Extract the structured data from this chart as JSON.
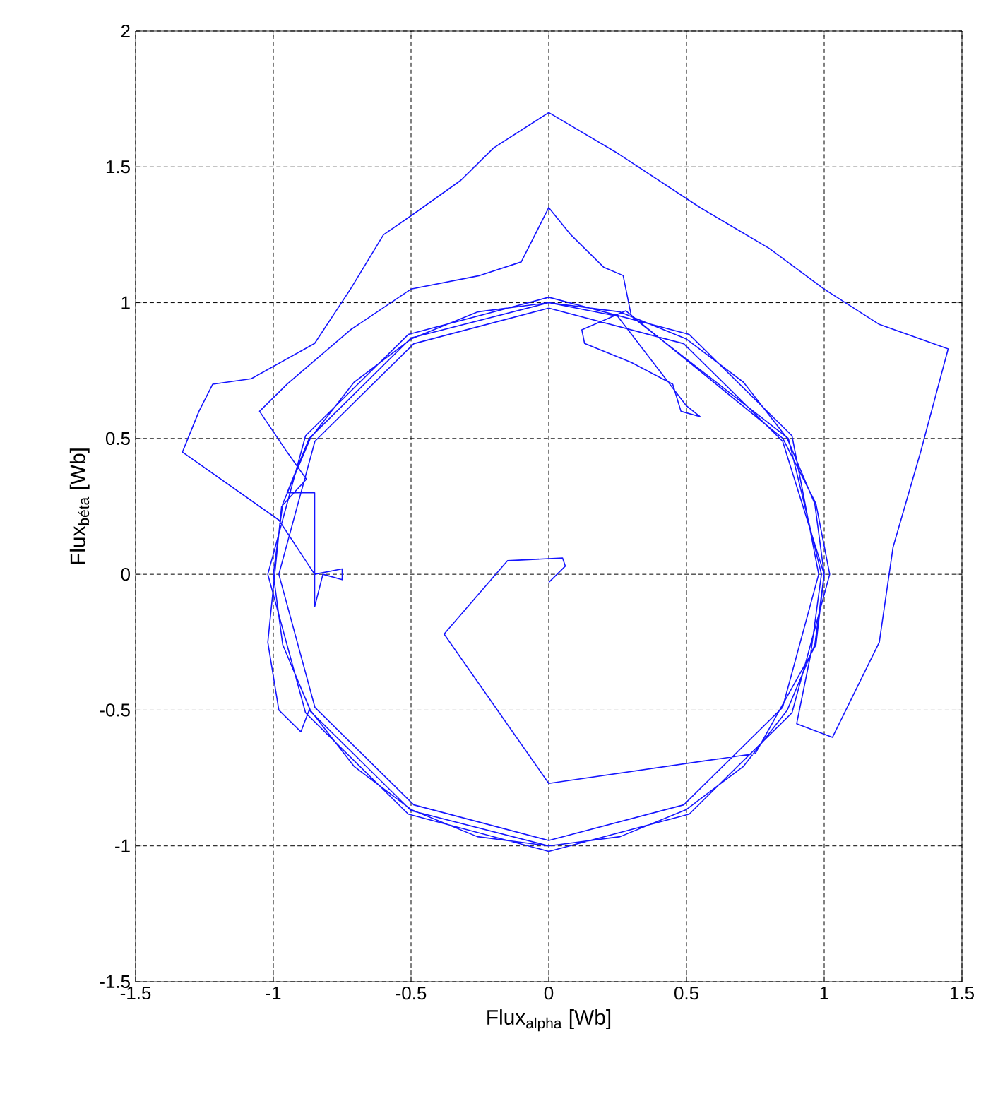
{
  "chart_data": {
    "type": "line",
    "xlabel": "Flux$_{alpha}$ [Wb]",
    "ylabel": "Flux$_{béta}$ [Wb]",
    "color": "#1414ff",
    "grid": true,
    "xlim": [
      -1.5,
      1.5
    ],
    "ylim": [
      -1.5,
      2
    ],
    "xticks": [
      -1.5,
      -1,
      -0.5,
      0,
      0.5,
      1,
      1.5
    ],
    "yticks": [
      -1.5,
      -1,
      -0.5,
      0,
      0.5,
      1,
      1.5,
      2
    ],
    "x": [
      0,
      0.06,
      0.05,
      -0.15,
      -0.38,
      0,
      0.75,
      0.97,
      1,
      0.966,
      0.866,
      0.707,
      0.5,
      0.259,
      0,
      -0.259,
      -0.5,
      -0.707,
      -0.866,
      -0.966,
      -1,
      -0.966,
      -0.866,
      -0.707,
      -0.5,
      -0.259,
      0,
      0.259,
      0.5,
      0.707,
      0.866,
      0.966,
      1,
      0.849,
      0.49,
      0,
      -0.49,
      -0.849,
      -0.98,
      -0.849,
      -0.49,
      0,
      0.49,
      0.849,
      0.98,
      0.883,
      0.51,
      0,
      -0.51,
      -0.883,
      -1.02,
      -0.883,
      -0.51,
      0,
      0.51,
      0.883,
      1.02,
      0.97,
      0.85,
      0.28,
      0.12,
      0.13,
      0.3,
      0.45,
      0.48,
      0.55,
      0.5,
      0.25,
      0,
      -0.5,
      -0.87,
      -0.95,
      -0.85,
      -0.85,
      -0.82,
      -0.75,
      -0.75,
      -0.85,
      -0.98,
      -1.33,
      -1.27,
      -1.22,
      -1.08,
      -0.85,
      -0.72,
      -0.6,
      -0.5,
      -0.32,
      -0.2,
      0,
      0.25,
      0.55,
      0.8,
      1.0,
      1.2,
      1.45,
      1.35,
      1.25,
      1.2,
      1.03,
      0.9,
      0.95,
      0.99,
      0.87,
      0.3,
      0.27,
      0.2,
      0.08,
      0,
      -0.1,
      -0.25,
      -0.5,
      -0.72,
      -0.95,
      -1.05,
      -0.95,
      -0.88,
      -0.97,
      -1.02,
      -0.98,
      -0.9,
      -0.87,
      -0.5,
      0
    ],
    "values": [
      -0.03,
      0.03,
      0.06,
      0.05,
      -0.22,
      -0.77,
      -0.66,
      -0.26,
      0,
      0.259,
      0.5,
      0.707,
      0.866,
      0.966,
      1,
      0.966,
      0.866,
      0.707,
      0.5,
      0.259,
      0,
      -0.259,
      -0.5,
      -0.707,
      -0.866,
      -0.966,
      -1,
      -0.966,
      -0.866,
      -0.707,
      -0.5,
      -0.259,
      0,
      0.49,
      0.849,
      0.98,
      0.849,
      0.49,
      0,
      -0.49,
      -0.849,
      -0.98,
      -0.849,
      -0.49,
      0,
      0.51,
      0.883,
      1.02,
      0.883,
      0.51,
      0,
      -0.51,
      -0.883,
      -1.02,
      -0.883,
      -0.51,
      0,
      0.26,
      0.5,
      0.97,
      0.9,
      0.85,
      0.78,
      0.7,
      0.6,
      0.58,
      0.62,
      0.95,
      1,
      0.87,
      0.5,
      0.3,
      0.3,
      -0.12,
      0,
      -0.02,
      0.02,
      0,
      0.2,
      0.45,
      0.6,
      0.7,
      0.72,
      0.85,
      1.05,
      1.25,
      1.32,
      1.45,
      1.57,
      1.7,
      1.55,
      1.35,
      1.2,
      1.05,
      0.92,
      0.83,
      0.45,
      0.1,
      -0.25,
      -0.6,
      -0.55,
      -0.3,
      0,
      0.5,
      0.95,
      1.1,
      1.13,
      1.25,
      1.35,
      1.15,
      1.1,
      1.05,
      0.9,
      0.7,
      0.6,
      0.45,
      0.35,
      0.25,
      -0.25,
      -0.5,
      -0.58,
      -0.5,
      -0.87,
      -1
    ]
  }
}
